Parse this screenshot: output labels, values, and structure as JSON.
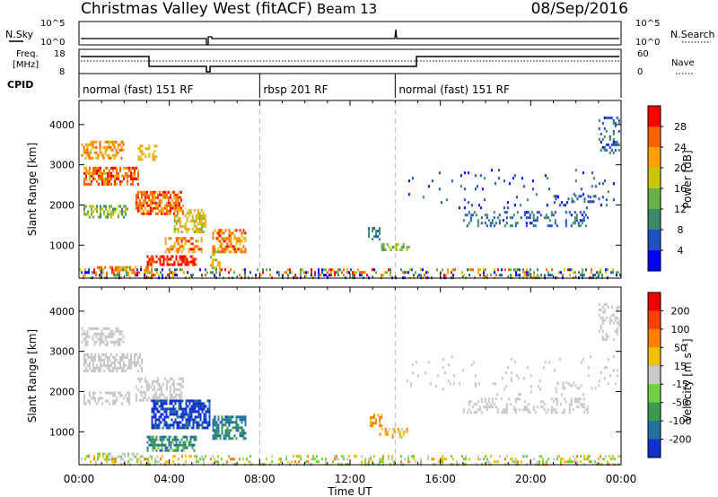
{
  "header": {
    "station": "Christmas Valley West (fitACF)",
    "beam": "Beam 13",
    "date": "08/Sep/2016"
  },
  "top_panels": {
    "nsky_label": "N.Sky",
    "nsearch_label": "N.Search",
    "noise_ticks": [
      "10^5",
      "10^0"
    ],
    "freq_label_1": "Freq.",
    "freq_label_2": "[MHz]",
    "freq_ticks": [
      "18",
      "8"
    ],
    "nave_label": "Nave",
    "nave_ticks": [
      "60",
      "0"
    ],
    "cpid_label": "CPID",
    "cpid_segments": [
      {
        "name": "normal (fast) 151 RF",
        "start_h": 0,
        "end_h": 8
      },
      {
        "name": "rbsp 201 RF",
        "start_h": 8,
        "end_h": 14
      },
      {
        "name": "normal (fast) 151 RF",
        "start_h": 14,
        "end_h": 24
      }
    ]
  },
  "chart_data": [
    {
      "type": "heatmap",
      "name": "power",
      "ylabel": "Slant Range [km]",
      "yticks": [
        1000,
        2000,
        3000,
        4000
      ],
      "ylim": [
        180,
        4600
      ],
      "xlim": [
        0,
        24
      ],
      "colorbar_label": "Power [dB]",
      "colorbar_ticks": [
        4,
        8,
        12,
        16,
        20,
        24,
        28
      ],
      "colorbar_colors": [
        "#0000ff",
        "#2050c0",
        "#3a8a6a",
        "#6ab04a",
        "#c8c800",
        "#ffa000",
        "#ff6000",
        "#ff0000"
      ],
      "dashed_lines_h": [
        8,
        14
      ],
      "regions": [
        {
          "t": [
            0.1,
            2.0
          ],
          "r": [
            3150,
            3600
          ],
          "lvl": [
            0.55,
            0.85
          ],
          "d": 0.55
        },
        {
          "t": [
            2.6,
            3.4
          ],
          "r": [
            3150,
            3500
          ],
          "lvl": [
            0.55,
            0.75
          ],
          "d": 0.5
        },
        {
          "t": [
            0.2,
            2.6
          ],
          "r": [
            2500,
            2950
          ],
          "lvl": [
            0.6,
            0.95
          ],
          "d": 0.65
        },
        {
          "t": [
            0.2,
            2.2
          ],
          "r": [
            1700,
            2000
          ],
          "lvl": [
            0.3,
            0.65
          ],
          "d": 0.45
        },
        {
          "t": [
            2.5,
            4.6
          ],
          "r": [
            1800,
            2350
          ],
          "lvl": [
            0.65,
            0.95
          ],
          "d": 0.7
        },
        {
          "t": [
            4.2,
            5.6
          ],
          "r": [
            1300,
            1900
          ],
          "lvl": [
            0.45,
            0.75
          ],
          "d": 0.5
        },
        {
          "t": [
            3.8,
            5.4
          ],
          "r": [
            850,
            1200
          ],
          "lvl": [
            0.6,
            0.9
          ],
          "d": 0.5
        },
        {
          "t": [
            3.0,
            5.2
          ],
          "r": [
            520,
            750
          ],
          "lvl": [
            0.8,
            1.0
          ],
          "d": 0.7
        },
        {
          "t": [
            0.8,
            3.2
          ],
          "r": [
            300,
            480
          ],
          "lvl": [
            0.55,
            0.9
          ],
          "d": 0.45
        },
        {
          "t": [
            5.9,
            7.4
          ],
          "r": [
            800,
            1400
          ],
          "lvl": [
            0.55,
            0.9
          ],
          "d": 0.65
        },
        {
          "t": [
            5.8,
            6.2
          ],
          "r": [
            400,
            1000
          ],
          "lvl": [
            0.4,
            0.7
          ],
          "d": 0.4
        },
        {
          "t": [
            12.8,
            13.3
          ],
          "r": [
            1150,
            1450
          ],
          "lvl": [
            0.15,
            0.35
          ],
          "d": 0.55
        },
        {
          "t": [
            13.3,
            14.6
          ],
          "r": [
            850,
            1050
          ],
          "lvl": [
            0.3,
            0.55
          ],
          "d": 0.45
        },
        {
          "t": [
            17.0,
            22.5
          ],
          "r": [
            1450,
            1850
          ],
          "lvl": [
            0.1,
            0.35
          ],
          "d": 0.28
        },
        {
          "t": [
            21.0,
            23.0
          ],
          "r": [
            2050,
            2250
          ],
          "lvl": [
            0.1,
            0.3
          ],
          "d": 0.2
        },
        {
          "t": [
            23.0,
            23.9
          ],
          "r": [
            3300,
            4200
          ],
          "lvl": [
            0.1,
            0.35
          ],
          "d": 0.3
        },
        {
          "t": [
            14.5,
            23.8
          ],
          "r": [
            1900,
            2900
          ],
          "lvl": [
            0.05,
            0.3
          ],
          "d": 0.04
        },
        {
          "t": [
            0.0,
            24.0
          ],
          "r": [
            190,
            420
          ],
          "lvl": [
            0.0,
            0.95
          ],
          "d": 0.3
        }
      ]
    },
    {
      "type": "heatmap",
      "name": "velocity",
      "ylabel": "Slant Range [km]",
      "yticks": [
        1000,
        2000,
        3000,
        4000
      ],
      "ylim": [
        180,
        4600
      ],
      "xlim": [
        0,
        24
      ],
      "colorbar_label": "Velocity [m s⁻¹]",
      "colorbar_ticks": [
        200,
        100,
        50,
        15,
        -15,
        -50,
        -100,
        -200
      ],
      "colorbar_colors": [
        "#1030d0",
        "#2070a0",
        "#3a9a50",
        "#70d040",
        "#c8c8c8",
        "#f0c000",
        "#ff8000",
        "#ff4000",
        "#ee0000"
      ],
      "dashed_lines_h": [
        8,
        14
      ],
      "regions": [
        {
          "t": [
            0.1,
            2.0
          ],
          "r": [
            3150,
            3600
          ],
          "lvl": [
            0.45,
            0.55
          ],
          "d": 0.5
        },
        {
          "t": [
            0.2,
            2.8
          ],
          "r": [
            2500,
            2950
          ],
          "lvl": [
            0.45,
            0.55
          ],
          "d": 0.6
        },
        {
          "t": [
            0.2,
            2.2
          ],
          "r": [
            1700,
            2000
          ],
          "lvl": [
            0.45,
            0.55
          ],
          "d": 0.45
        },
        {
          "t": [
            2.5,
            4.6
          ],
          "r": [
            1800,
            2350
          ],
          "lvl": [
            0.45,
            0.55
          ],
          "d": 0.5
        },
        {
          "t": [
            3.2,
            5.8
          ],
          "r": [
            1100,
            1800
          ],
          "lvl": [
            0.85,
            1.0
          ],
          "d": 0.7
        },
        {
          "t": [
            3.0,
            5.2
          ],
          "r": [
            520,
            900
          ],
          "lvl": [
            0.65,
            0.85
          ],
          "d": 0.6
        },
        {
          "t": [
            0.8,
            3.2
          ],
          "r": [
            300,
            480
          ],
          "lvl": [
            0.45,
            0.65
          ],
          "d": 0.45
        },
        {
          "t": [
            5.9,
            7.4
          ],
          "r": [
            800,
            1400
          ],
          "lvl": [
            0.7,
            0.9
          ],
          "d": 0.65
        },
        {
          "t": [
            12.8,
            13.4
          ],
          "r": [
            1150,
            1450
          ],
          "lvl": [
            0.25,
            0.35
          ],
          "d": 0.55
        },
        {
          "t": [
            13.3,
            14.6
          ],
          "r": [
            850,
            1100
          ],
          "lvl": [
            0.3,
            0.5
          ],
          "d": 0.45
        },
        {
          "t": [
            17.0,
            22.5
          ],
          "r": [
            1450,
            1850
          ],
          "lvl": [
            0.45,
            0.55
          ],
          "d": 0.3
        },
        {
          "t": [
            21.0,
            23.0
          ],
          "r": [
            2050,
            2250
          ],
          "lvl": [
            0.45,
            0.55
          ],
          "d": 0.2
        },
        {
          "t": [
            23.0,
            23.9
          ],
          "r": [
            3300,
            4200
          ],
          "lvl": [
            0.45,
            0.55
          ],
          "d": 0.3
        },
        {
          "t": [
            14.5,
            23.8
          ],
          "r": [
            1900,
            2900
          ],
          "lvl": [
            0.45,
            0.55
          ],
          "d": 0.04
        },
        {
          "t": [
            0.0,
            24.0
          ],
          "r": [
            190,
            420
          ],
          "lvl": [
            0.3,
            0.65
          ],
          "d": 0.3
        }
      ]
    }
  ],
  "xaxis": {
    "label": "Time UT",
    "ticks": [
      "00:00",
      "04:00",
      "08:00",
      "12:00",
      "16:00",
      "20:00",
      "00:00"
    ]
  }
}
